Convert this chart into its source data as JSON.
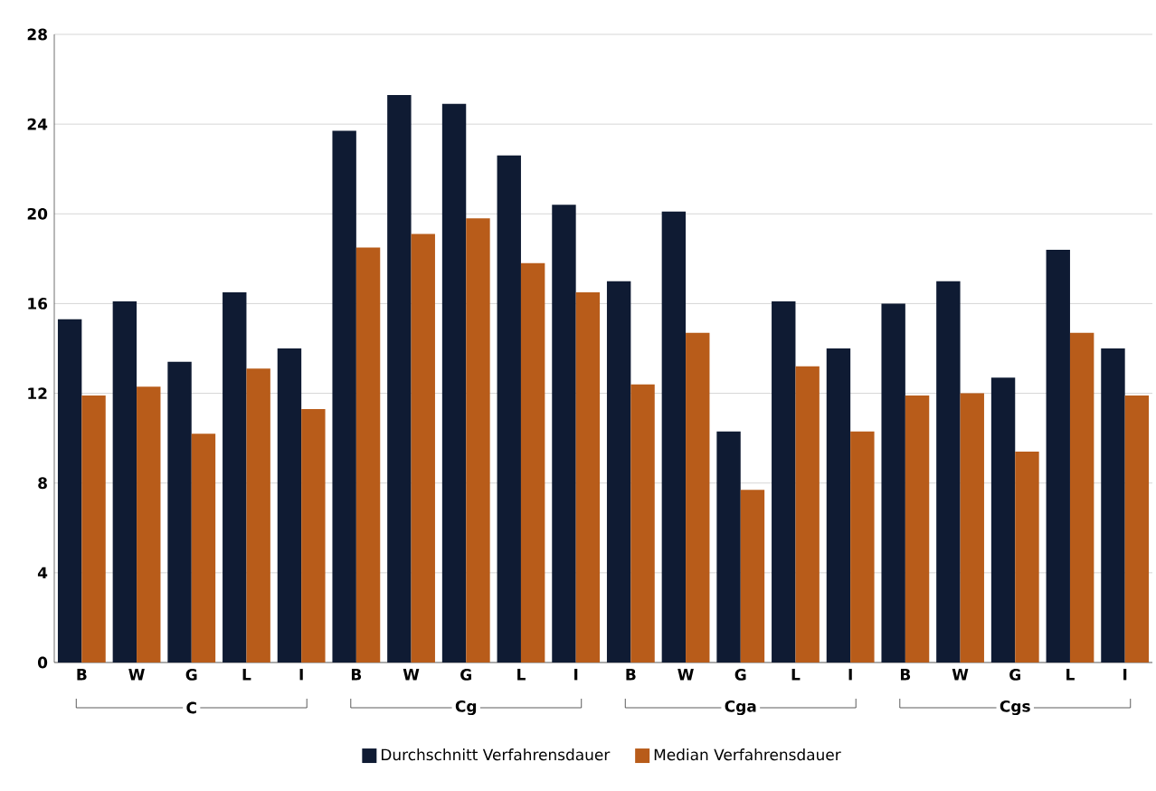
{
  "chart_data": {
    "type": "bar",
    "categories": [
      "B",
      "W",
      "G",
      "L",
      "I",
      "B",
      "W",
      "G",
      "L",
      "I",
      "B",
      "W",
      "G",
      "L",
      "I",
      "B",
      "W",
      "G",
      "L",
      "I"
    ],
    "series": [
      {
        "name": "Durchschnitt Verfahrensdauer",
        "color": "#0f1b33",
        "values": [
          15.3,
          16.1,
          13.4,
          16.5,
          14.0,
          23.7,
          25.3,
          24.9,
          22.6,
          20.4,
          17.0,
          20.1,
          10.3,
          16.1,
          14.0,
          16.0,
          17.0,
          12.7,
          18.4,
          14.0
        ]
      },
      {
        "name": "Median Verfahrensdauer",
        "color": "#b85c1a",
        "values": [
          11.9,
          12.3,
          10.2,
          13.1,
          11.3,
          18.5,
          19.1,
          19.8,
          17.8,
          16.5,
          12.4,
          14.7,
          7.7,
          13.2,
          10.3,
          11.9,
          12.0,
          9.4,
          14.7,
          11.9
        ]
      }
    ],
    "annotations": [
      "C",
      "Cg",
      "Cga",
      "Cgs"
    ],
    "ylim": [
      0,
      28
    ],
    "yticks": [
      0,
      4,
      8,
      12,
      16,
      20,
      24,
      28
    ],
    "grid": "y",
    "legend": "bottom"
  }
}
